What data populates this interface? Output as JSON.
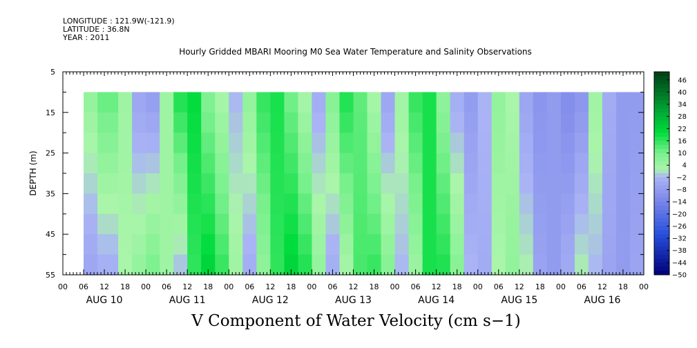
{
  "header": {
    "longitude": "LONGITUDE : 121.9W(-121.9)",
    "latitude": "LATITUDE : 36.8N",
    "year": "YEAR : 2011"
  },
  "chart_data": {
    "type": "heatmap",
    "title": "Hourly Gridded MBARI Mooring M0 Sea Water Temperature and Salinity Observations",
    "caption": "V Component of Water Velocity (cm s−1)",
    "ylabel": "DEPTH (m)",
    "y_reversed": true,
    "ylim": [
      5,
      55
    ],
    "y_ticks": [
      5,
      15,
      25,
      35,
      45,
      55
    ],
    "data_depth_range": [
      10,
      55
    ],
    "x_hours_range": [
      0,
      168
    ],
    "data_start_hour": 6,
    "x_tick_labels": [
      "00",
      "06",
      "12",
      "18",
      "00",
      "06",
      "12",
      "18",
      "00",
      "06",
      "12",
      "18",
      "00",
      "06",
      "12",
      "18",
      "00",
      "06",
      "12",
      "18",
      "00",
      "06",
      "12",
      "18",
      "00",
      "06",
      "12",
      "18",
      "00"
    ],
    "date_labels": [
      "AUG 10",
      "AUG 11",
      "AUG 12",
      "AUG 13",
      "AUG 14",
      "AUG 15",
      "AUG 16"
    ],
    "colorbar": {
      "min": -50,
      "max": 50,
      "tick_labels": [
        "46",
        "40",
        "34",
        "28",
        "22",
        "16",
        "10",
        "4",
        "−2",
        "−8",
        "−14",
        "−20",
        "−26",
        "−32",
        "−38",
        "−44",
        "−50"
      ]
    },
    "column_profiles": [
      {
        "hour": 6,
        "surface": 6,
        "bottom": -6
      },
      {
        "hour": 10,
        "surface": 12,
        "bottom": -4
      },
      {
        "hour": 16,
        "surface": 4,
        "bottom": 2
      },
      {
        "hour": 20,
        "surface": -6,
        "bottom": 6
      },
      {
        "hour": 24,
        "surface": -8,
        "bottom": 10
      },
      {
        "hour": 28,
        "surface": 4,
        "bottom": 4
      },
      {
        "hour": 32,
        "surface": 18,
        "bottom": -2
      },
      {
        "hour": 36,
        "surface": 20,
        "bottom": 16
      },
      {
        "hour": 40,
        "surface": 8,
        "bottom": 22
      },
      {
        "hour": 44,
        "surface": 2,
        "bottom": 16
      },
      {
        "hour": 48,
        "surface": -2,
        "bottom": 4
      },
      {
        "hour": 52,
        "surface": 6,
        "bottom": -4
      },
      {
        "hour": 56,
        "surface": 16,
        "bottom": 6
      },
      {
        "hour": 60,
        "surface": 18,
        "bottom": 16
      },
      {
        "hour": 64,
        "surface": 10,
        "bottom": 22
      },
      {
        "hour": 68,
        "surface": 2,
        "bottom": 18
      },
      {
        "hour": 72,
        "surface": -4,
        "bottom": 6
      },
      {
        "hour": 76,
        "surface": 8,
        "bottom": -4
      },
      {
        "hour": 80,
        "surface": 18,
        "bottom": 2
      },
      {
        "hour": 84,
        "surface": 12,
        "bottom": 14
      },
      {
        "hour": 88,
        "surface": 2,
        "bottom": 16
      },
      {
        "hour": 92,
        "surface": -6,
        "bottom": 8
      },
      {
        "hour": 96,
        "surface": 4,
        "bottom": -2
      },
      {
        "hour": 100,
        "surface": 16,
        "bottom": 4
      },
      {
        "hour": 104,
        "surface": 18,
        "bottom": 18
      },
      {
        "hour": 108,
        "surface": 6,
        "bottom": 18
      },
      {
        "hour": 112,
        "surface": -4,
        "bottom": 8
      },
      {
        "hour": 116,
        "surface": -8,
        "bottom": -2
      },
      {
        "hour": 120,
        "surface": -2,
        "bottom": -4
      },
      {
        "hour": 124,
        "surface": 6,
        "bottom": 2
      },
      {
        "hour": 128,
        "surface": 2,
        "bottom": 6
      },
      {
        "hour": 132,
        "surface": -6,
        "bottom": 2
      },
      {
        "hour": 136,
        "surface": -10,
        "bottom": -6
      },
      {
        "hour": 140,
        "surface": -8,
        "bottom": -8
      },
      {
        "hour": 144,
        "surface": -12,
        "bottom": -4
      },
      {
        "hour": 148,
        "surface": -10,
        "bottom": 2
      },
      {
        "hour": 152,
        "surface": 4,
        "bottom": -2
      },
      {
        "hour": 156,
        "surface": -4,
        "bottom": -6
      },
      {
        "hour": 160,
        "surface": -8,
        "bottom": -8
      },
      {
        "hour": 164,
        "surface": -8,
        "bottom": -6
      },
      {
        "hour": 168,
        "surface": -6,
        "bottom": -4
      }
    ]
  }
}
